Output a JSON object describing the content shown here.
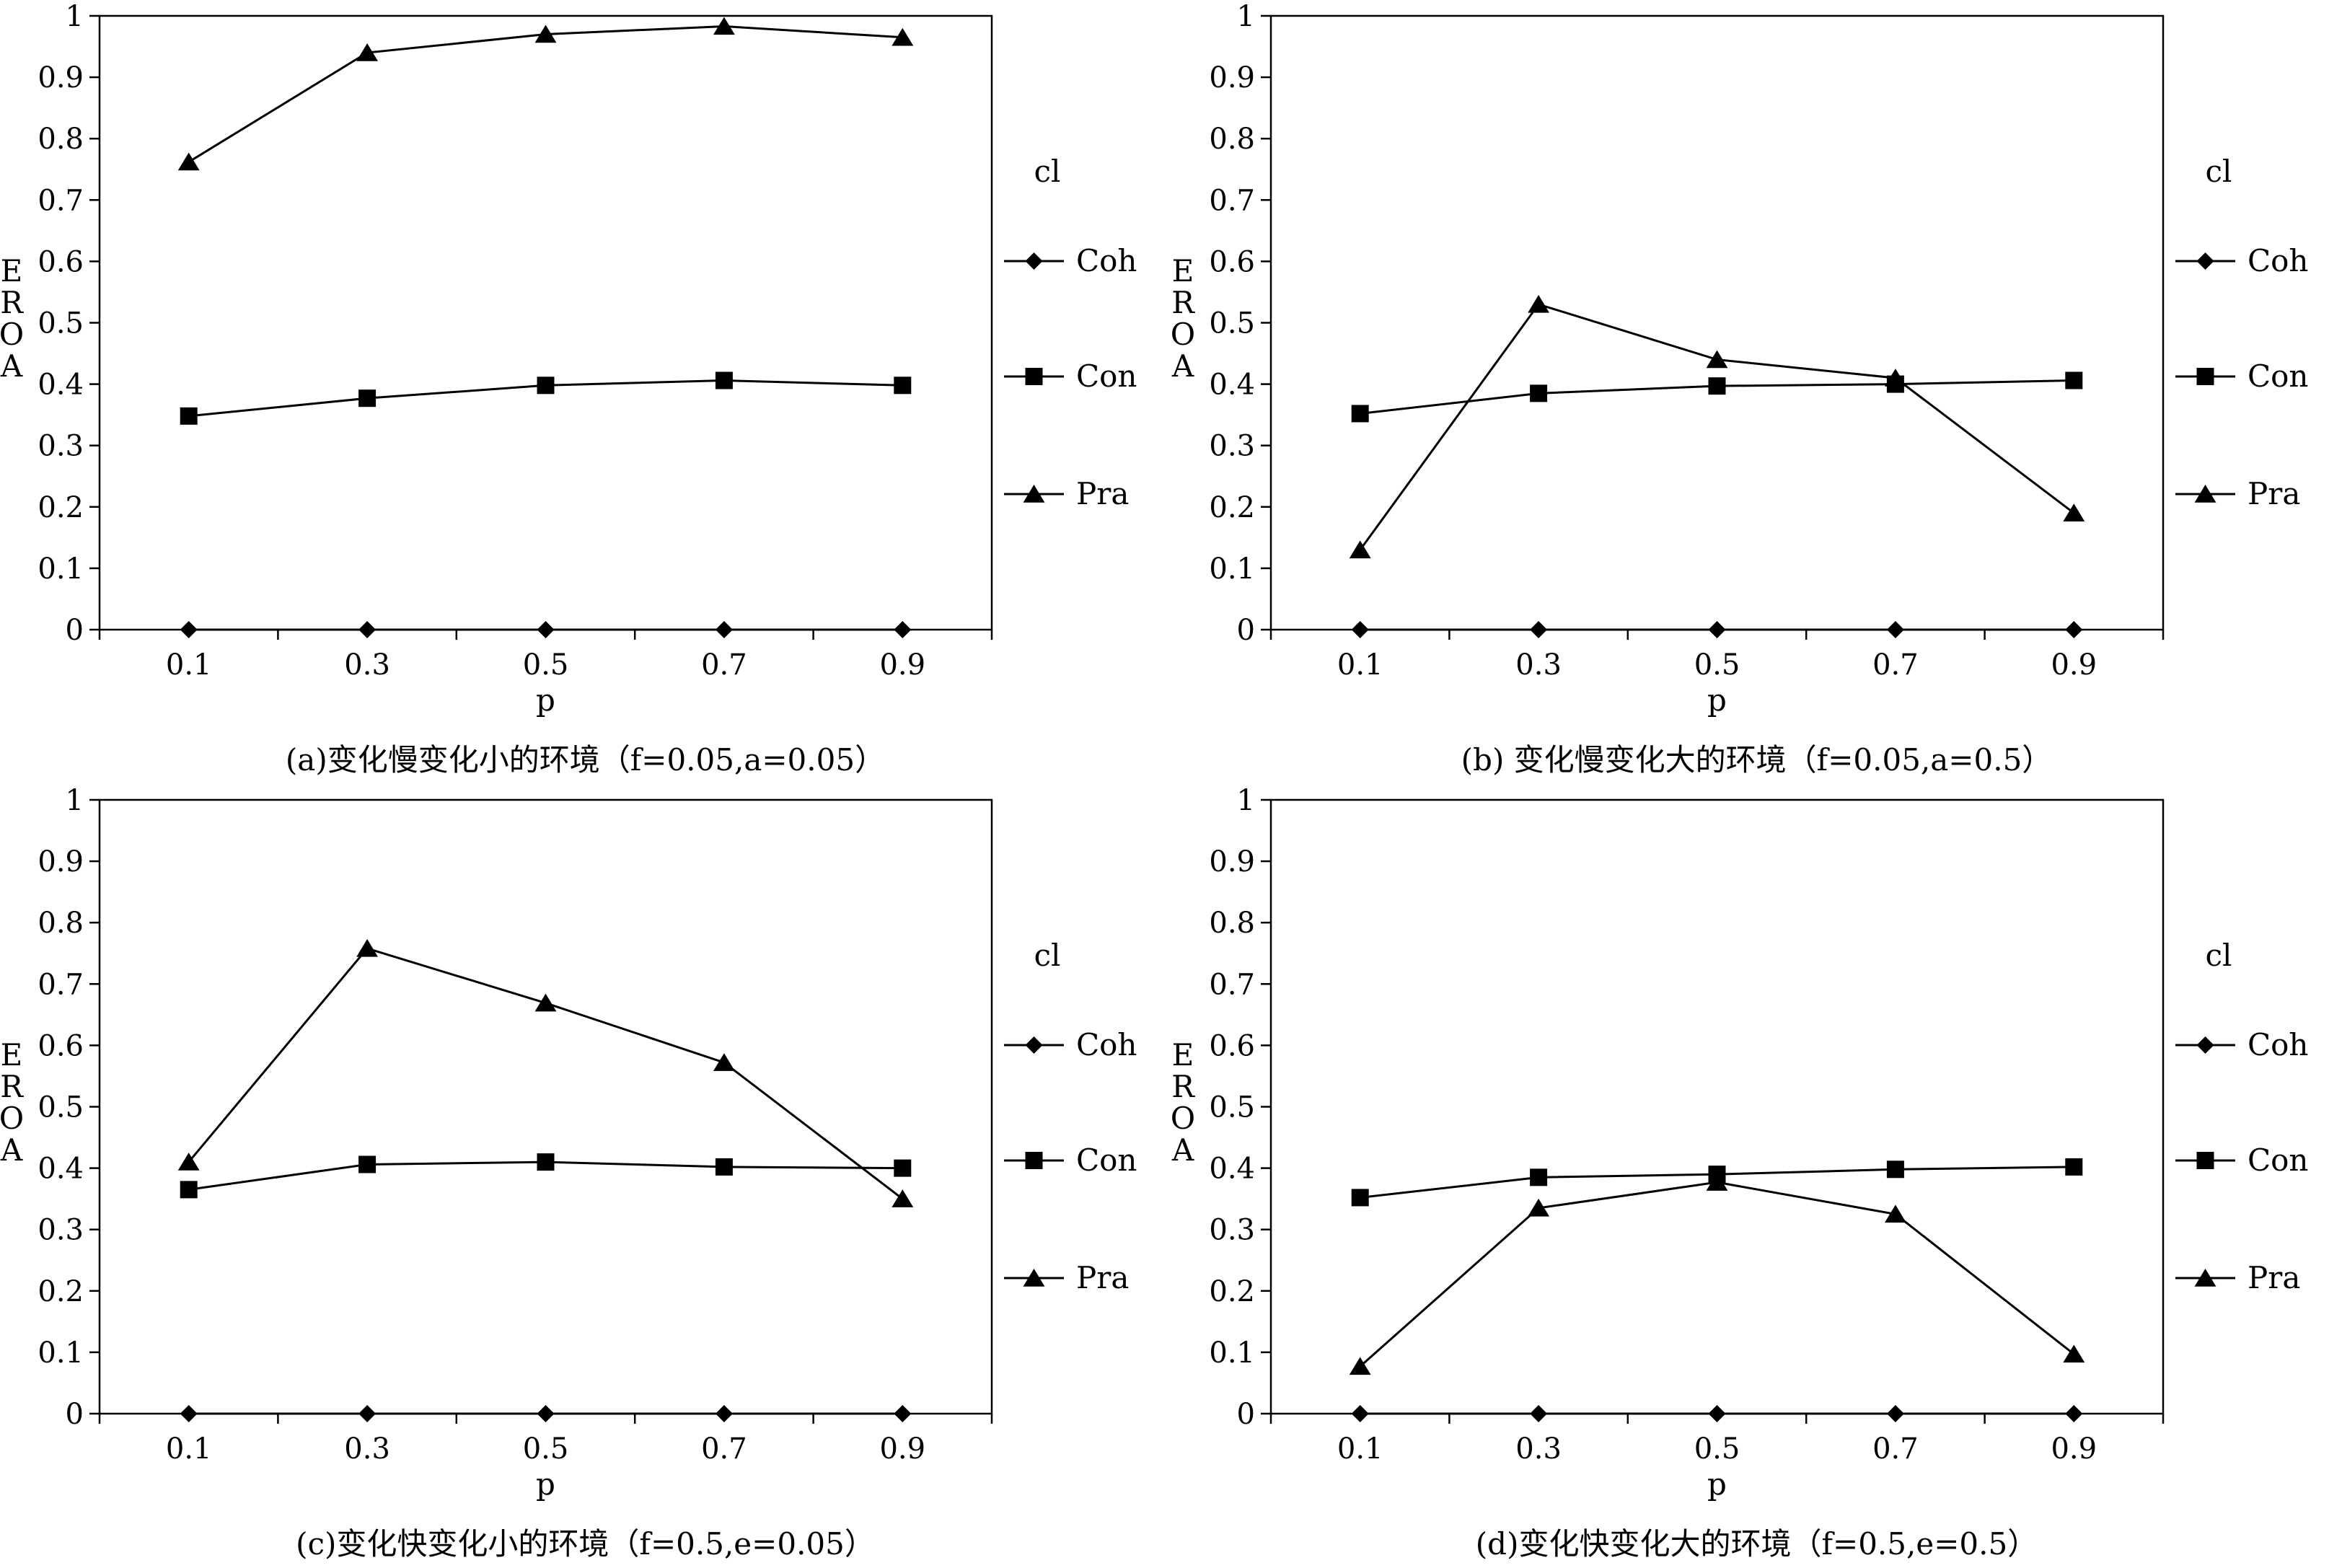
{
  "colors": {
    "line": "#000000",
    "background": "#ffffff"
  },
  "legend_title": "cl",
  "chart_data": [
    {
      "type": "line",
      "title": "(a)变化慢变化小的环境（f=0.05,a=0.05）",
      "xlabel": "p",
      "ylabel": "EROA",
      "categories": [
        "0.1",
        "0.3",
        "0.5",
        "0.7",
        "0.9"
      ],
      "ylim": [
        0,
        1
      ],
      "yticks": [
        "0",
        "0.1",
        "0.2",
        "0.3",
        "0.4",
        "0.5",
        "0.6",
        "0.7",
        "0.8",
        "0.9",
        "1"
      ],
      "grid": false,
      "legend_placement": "right",
      "series": [
        {
          "name": "Coh",
          "marker": "diamond",
          "values": [
            0.0,
            0.0,
            0.0,
            0.0,
            0.0
          ]
        },
        {
          "name": "Con",
          "marker": "square",
          "values": [
            0.348,
            0.377,
            0.398,
            0.406,
            0.398
          ]
        },
        {
          "name": "Pra",
          "marker": "triangle",
          "values": [
            0.762,
            0.94,
            0.97,
            0.983,
            0.965
          ]
        }
      ]
    },
    {
      "type": "line",
      "title": "(b) 变化慢变化大的环境（f=0.05,a=0.5）",
      "xlabel": "p",
      "ylabel": "EROA",
      "categories": [
        "0.1",
        "0.3",
        "0.5",
        "0.7",
        "0.9"
      ],
      "ylim": [
        0,
        1
      ],
      "yticks": [
        "0",
        "0.1",
        "0.2",
        "0.3",
        "0.4",
        "0.5",
        "0.6",
        "0.7",
        "0.8",
        "0.9",
        "1"
      ],
      "grid": false,
      "legend_placement": "right",
      "series": [
        {
          "name": "Coh",
          "marker": "diamond",
          "values": [
            0.0,
            0.0,
            0.0,
            0.0,
            0.0
          ]
        },
        {
          "name": "Con",
          "marker": "square",
          "values": [
            0.352,
            0.385,
            0.397,
            0.4,
            0.406
          ]
        },
        {
          "name": "Pra",
          "marker": "triangle",
          "values": [
            0.13,
            0.53,
            0.44,
            0.41,
            0.19
          ]
        }
      ]
    },
    {
      "type": "line",
      "title": "(c)变化快变化小的环境（f=0.5,e=0.05）",
      "xlabel": "p",
      "ylabel": "EROA",
      "categories": [
        "0.1",
        "0.3",
        "0.5",
        "0.7",
        "0.9"
      ],
      "ylim": [
        0,
        1
      ],
      "yticks": [
        "0",
        "0.1",
        "0.2",
        "0.3",
        "0.4",
        "0.5",
        "0.6",
        "0.7",
        "0.8",
        "0.9",
        "1"
      ],
      "grid": false,
      "legend_placement": "right",
      "series": [
        {
          "name": "Coh",
          "marker": "diamond",
          "values": [
            0.0,
            0.0,
            0.0,
            0.0,
            0.0
          ]
        },
        {
          "name": "Con",
          "marker": "square",
          "values": [
            0.365,
            0.406,
            0.41,
            0.402,
            0.4
          ]
        },
        {
          "name": "Pra",
          "marker": "triangle",
          "values": [
            0.41,
            0.758,
            0.669,
            0.572,
            0.35
          ]
        }
      ]
    },
    {
      "type": "line",
      "title": "(d)变化快变化大的环境（f=0.5,e=0.5）",
      "xlabel": "p",
      "ylabel": "EROA",
      "categories": [
        "0.1",
        "0.3",
        "0.5",
        "0.7",
        "0.9"
      ],
      "ylim": [
        0,
        1
      ],
      "yticks": [
        "0",
        "0.1",
        "0.2",
        "0.3",
        "0.4",
        "0.5",
        "0.6",
        "0.7",
        "0.8",
        "0.9",
        "1"
      ],
      "grid": false,
      "legend_placement": "right",
      "series": [
        {
          "name": "Coh",
          "marker": "diamond",
          "values": [
            0.0,
            0.0,
            0.0,
            0.0,
            0.0
          ]
        },
        {
          "name": "Con",
          "marker": "square",
          "values": [
            0.352,
            0.385,
            0.39,
            0.398,
            0.402
          ]
        },
        {
          "name": "Pra",
          "marker": "triangle",
          "values": [
            0.077,
            0.335,
            0.377,
            0.325,
            0.097
          ]
        }
      ]
    }
  ]
}
